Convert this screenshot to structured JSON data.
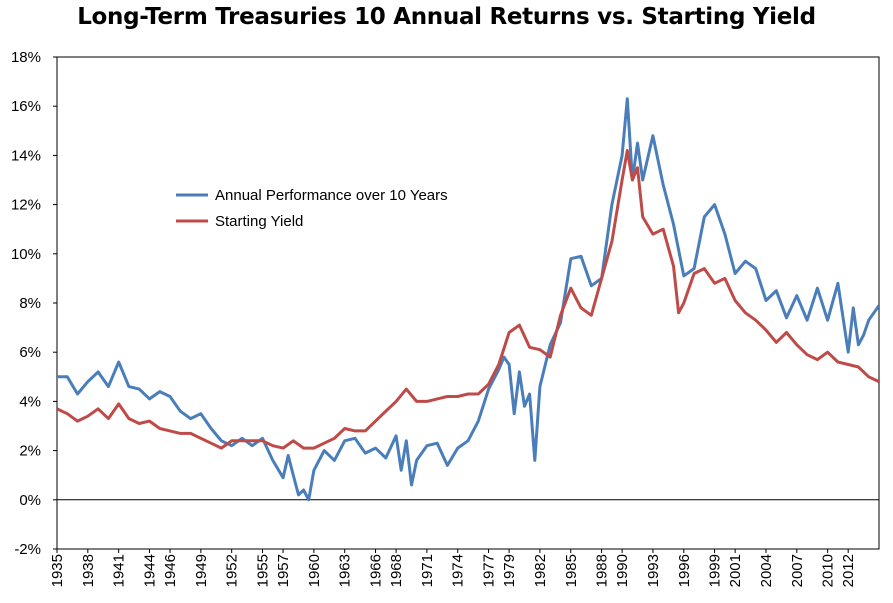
{
  "chart_data": {
    "type": "line",
    "title": "Long-Term Treasuries 10 Annual Returns vs. Starting Yield",
    "xlabel": "",
    "ylabel": "",
    "xlim": [
      1935,
      2015
    ],
    "ylim": [
      -2,
      18
    ],
    "y_ticks": [
      -2,
      0,
      2,
      4,
      6,
      8,
      10,
      12,
      14,
      16,
      18
    ],
    "y_tick_labels": [
      "-2%",
      "0%",
      "2%",
      "4%",
      "6%",
      "8%",
      "10%",
      "12%",
      "14%",
      "16%",
      "18%"
    ],
    "x_ticks": [
      1935,
      1938,
      1941,
      1944,
      1946,
      1949,
      1952,
      1955,
      1957,
      1960,
      1963,
      1966,
      1968,
      1971,
      1974,
      1977,
      1979,
      1982,
      1985,
      1988,
      1990,
      1993,
      1996,
      1999,
      2001,
      2004,
      2007,
      2010,
      2012
    ],
    "x_tick_labels": [
      "1935",
      "1938",
      "1941",
      "1944",
      "1946",
      "1949",
      "1952",
      "1955",
      "1957",
      "1960",
      "1963",
      "1966",
      "1968",
      "1971",
      "1974",
      "1977",
      "1979",
      "1982",
      "1985",
      "1988",
      "1990",
      "1993",
      "1996",
      "1999",
      "2001",
      "2004",
      "2007",
      "2010",
      "2012"
    ],
    "legend_position": "upper-left",
    "series": [
      {
        "name": "Annual Performance over 10 Years",
        "color": "#4A7EBB",
        "x": [
          1935,
          1936,
          1937,
          1938,
          1939,
          1940,
          1941,
          1942,
          1943,
          1944,
          1945,
          1946,
          1947,
          1948,
          1949,
          1950,
          1951,
          1952,
          1953,
          1954,
          1955,
          1956,
          1957,
          1957.5,
          1958,
          1958.5,
          1959,
          1959.5,
          1960,
          1961,
          1962,
          1963,
          1964,
          1965,
          1966,
          1967,
          1968,
          1968.5,
          1969,
          1969.5,
          1970,
          1971,
          1972,
          1973,
          1974,
          1975,
          1976,
          1977,
          1978,
          1978.5,
          1979,
          1979.5,
          1980,
          1980.5,
          1981,
          1981.5,
          1982,
          1983,
          1984,
          1985,
          1986,
          1987,
          1988,
          1989,
          1990,
          1990.5,
          1991,
          1991.5,
          1992,
          1993,
          1994,
          1995,
          1996,
          1997,
          1998,
          1999,
          2000,
          2001,
          2002,
          2003,
          2004,
          2005,
          2006,
          2007,
          2008,
          2009,
          2010,
          2011,
          2012,
          2012.5,
          2013,
          2013.5,
          2014,
          2015
        ],
        "values": [
          5.0,
          5.0,
          4.3,
          4.8,
          5.2,
          4.6,
          5.6,
          4.6,
          4.5,
          4.1,
          4.4,
          4.2,
          3.6,
          3.3,
          3.5,
          2.9,
          2.4,
          2.2,
          2.5,
          2.2,
          2.5,
          1.6,
          0.9,
          1.8,
          1.0,
          0.2,
          0.4,
          0.0,
          1.2,
          2.0,
          1.6,
          2.4,
          2.5,
          1.9,
          2.1,
          1.7,
          2.6,
          1.2,
          2.4,
          0.6,
          1.6,
          2.2,
          2.3,
          1.4,
          2.1,
          2.4,
          3.2,
          4.5,
          5.3,
          5.8,
          5.5,
          3.5,
          5.2,
          3.8,
          4.3,
          1.6,
          4.6,
          6.3,
          7.2,
          9.8,
          9.9,
          8.7,
          9.0,
          12.0,
          14.0,
          16.3,
          13.0,
          14.5,
          13.0,
          14.8,
          12.8,
          11.2,
          9.1,
          9.4,
          11.5,
          12.0,
          10.8,
          9.2,
          9.7,
          9.4,
          8.1,
          8.5,
          7.4,
          8.3,
          7.3,
          8.6,
          7.3,
          8.8,
          6.0,
          7.8,
          6.3,
          6.7,
          7.3,
          7.9
        ],
        "comment": "values in percent"
      },
      {
        "name": "Starting Yield",
        "color": "#BE4B48",
        "x": [
          1935,
          1936,
          1937,
          1938,
          1939,
          1940,
          1941,
          1942,
          1943,
          1944,
          1945,
          1946,
          1947,
          1948,
          1949,
          1950,
          1951,
          1952,
          1953,
          1954,
          1955,
          1956,
          1957,
          1958,
          1959,
          1960,
          1961,
          1962,
          1963,
          1964,
          1965,
          1966,
          1967,
          1968,
          1969,
          1970,
          1971,
          1972,
          1973,
          1974,
          1975,
          1976,
          1977,
          1978,
          1979,
          1980,
          1981,
          1982,
          1983,
          1984,
          1985,
          1986,
          1987,
          1988,
          1989,
          1990,
          1990.5,
          1991,
          1991.5,
          1992,
          1993,
          1994,
          1995,
          1995.5,
          1996,
          1997,
          1998,
          1999,
          2000,
          2001,
          2002,
          2003,
          2004,
          2005,
          2006,
          2007,
          2008,
          2009,
          2010,
          2011,
          2012,
          2013,
          2014,
          2015
        ],
        "values": [
          3.7,
          3.5,
          3.2,
          3.4,
          3.7,
          3.3,
          3.9,
          3.3,
          3.1,
          3.2,
          2.9,
          2.8,
          2.7,
          2.7,
          2.5,
          2.3,
          2.1,
          2.4,
          2.4,
          2.4,
          2.4,
          2.2,
          2.1,
          2.4,
          2.1,
          2.1,
          2.3,
          2.5,
          2.9,
          2.8,
          2.8,
          3.2,
          3.6,
          4.0,
          4.5,
          4.0,
          4.0,
          4.1,
          4.2,
          4.2,
          4.3,
          4.3,
          4.7,
          5.5,
          6.8,
          7.1,
          6.2,
          6.1,
          5.8,
          7.5,
          8.6,
          7.8,
          7.5,
          9.0,
          10.5,
          13.0,
          14.2,
          13.0,
          13.5,
          11.5,
          10.8,
          11.0,
          9.5,
          7.6,
          8.0,
          9.2,
          9.4,
          8.8,
          9.0,
          8.1,
          7.6,
          7.3,
          6.9,
          6.4,
          6.8,
          6.3,
          5.9,
          5.7,
          6.0,
          5.6,
          5.5,
          5.4,
          5.0,
          4.8
        ],
        "comment": "values in percent"
      }
    ]
  }
}
